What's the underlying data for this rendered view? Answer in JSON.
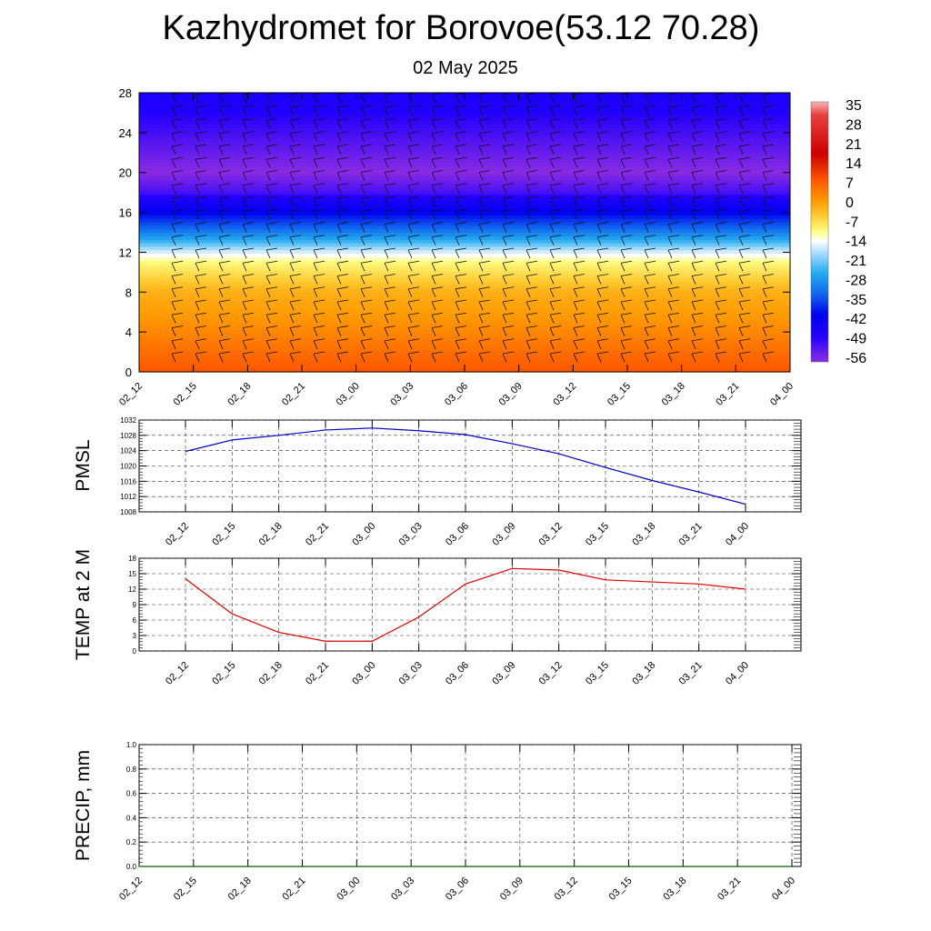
{
  "title": "Kazhydromet for Borovoe(53.12 70.28)",
  "subtitle": "02 May 2025",
  "colorbar_labels": [
    "35",
    "28",
    "21",
    "14",
    "7",
    "0",
    "-7",
    "-14",
    "-21",
    "-28",
    "-35",
    "-42",
    "-49",
    "-56"
  ],
  "chart_data": [
    {
      "type": "heatmap",
      "title": "",
      "xlabel": "",
      "ylabel": "",
      "x_ticks": [
        "02_12",
        "02_15",
        "02_18",
        "02_21",
        "03_00",
        "03_03",
        "03_06",
        "03_09",
        "03_12",
        "03_15",
        "03_18",
        "03_21",
        "04_00"
      ],
      "y_ticks": [
        "0",
        "4",
        "8",
        "12",
        "16",
        "20",
        "24",
        "28"
      ],
      "ylim": [
        0,
        28
      ],
      "colorbar": {
        "min": -56,
        "max": 35,
        "ticks": [
          35,
          28,
          21,
          14,
          7,
          0,
          -7,
          -14,
          -21,
          -28,
          -35,
          -42,
          -49,
          -56
        ]
      },
      "overlay": "wind barbs",
      "vertical_profile_temperature": [
        {
          "level": 0,
          "value": 14
        },
        {
          "level": 4,
          "value": 9
        },
        {
          "level": 8,
          "value": 4
        },
        {
          "level": 11,
          "value": -6
        },
        {
          "level": 13,
          "value": -22
        },
        {
          "level": 16,
          "value": -42
        },
        {
          "level": 18,
          "value": -52
        },
        {
          "level": 20,
          "value": -56
        },
        {
          "level": 24,
          "value": -52
        },
        {
          "level": 28,
          "value": -48
        }
      ]
    },
    {
      "type": "line",
      "ylabel": "PMSL",
      "ylim": [
        1008,
        1032
      ],
      "y_ticks": [
        "1032",
        "1028",
        "1024",
        "1020",
        "1016",
        "1012",
        "1008"
      ],
      "y_ticks_all": [
        "1032",
        "1030",
        "1028",
        "1026",
        "1024",
        "1022",
        "1020",
        "1018",
        "1016",
        "1014",
        "1012",
        "1010",
        "1008"
      ],
      "categories": [
        "02_12",
        "02_15",
        "02_18",
        "02_21",
        "03_00",
        "03_03",
        "03_06",
        "03_09",
        "03_12",
        "03_15",
        "03_18",
        "03_21",
        "04_00"
      ],
      "series": [
        {
          "color": "#0000cc",
          "values": [
            1023.8,
            1026.8,
            1028,
            1029.4,
            1029.9,
            1029.2,
            1028.2,
            1025.8,
            1023.2,
            1019.6,
            1016.2,
            1013.2,
            1010
          ]
        }
      ],
      "grid": true
    },
    {
      "type": "line",
      "ylabel": "TEMP at 2 M",
      "ylim": [
        0,
        18
      ],
      "y_ticks": [
        "18",
        "15",
        "12",
        "9",
        "6",
        "3",
        "0"
      ],
      "categories": [
        "02_12",
        "02_15",
        "02_18",
        "02_21",
        "03_00",
        "03_03",
        "03_06",
        "03_09",
        "03_12",
        "03_15",
        "03_18",
        "03_21",
        "04_00"
      ],
      "series": [
        {
          "color": "#dd0000",
          "values": [
            14,
            7.2,
            3.6,
            1.9,
            1.9,
            6.6,
            13,
            16,
            15.7,
            13.8,
            13.4,
            13,
            12
          ]
        }
      ],
      "grid": true
    },
    {
      "type": "line",
      "ylabel": "PRECIP, mm",
      "ylim": [
        0,
        1
      ],
      "y_ticks": [
        "1.0",
        "0.8",
        "0.6",
        "0.4",
        "0.2",
        "0.0"
      ],
      "categories": [
        "02_12",
        "02_15",
        "02_18",
        "02_21",
        "03_00",
        "03_03",
        "03_06",
        "03_09",
        "03_12",
        "03_15",
        "03_18",
        "03_21",
        "04_00"
      ],
      "series": [
        {
          "color": "#006600",
          "values": [
            0,
            0,
            0,
            0,
            0,
            0,
            0,
            0,
            0,
            0,
            0,
            0,
            0
          ]
        }
      ],
      "grid": true
    }
  ]
}
